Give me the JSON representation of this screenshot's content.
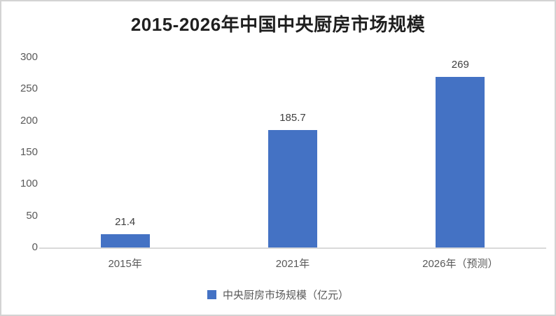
{
  "page": {
    "background": "#ffffff",
    "border_color": "#d3d3d3"
  },
  "chart_data": {
    "type": "bar",
    "title": "2015-2026年中国中央厨房市场规模",
    "categories": [
      "2015年",
      "2021年",
      "2026年（预测）"
    ],
    "values": [
      21.4,
      185.7,
      269
    ],
    "value_labels": [
      "21.4",
      "185.7",
      "269"
    ],
    "series_name": "中央厨房市场规模（亿元）",
    "legend": {
      "position": "bottom",
      "entries": [
        "中央厨房市场规模（亿元）"
      ]
    },
    "xlabel": "",
    "ylabel": "",
    "ylim": [
      0,
      300
    ],
    "yticks": [
      0,
      50,
      100,
      150,
      200,
      250,
      300
    ],
    "grid": false,
    "bar_color": "#4472C4",
    "axis_line_color": "#d9d9d9",
    "tick_label_color": "#595959",
    "value_label_color": "#404040",
    "title_color": "#1f1f1f"
  }
}
